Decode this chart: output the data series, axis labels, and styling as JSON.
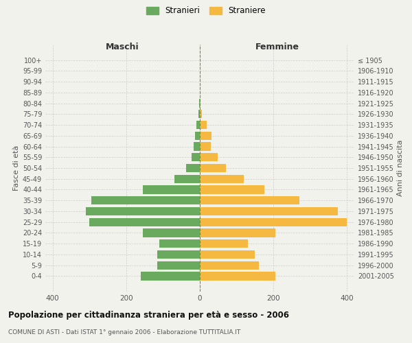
{
  "age_groups": [
    "0-4",
    "5-9",
    "10-14",
    "15-19",
    "20-24",
    "25-29",
    "30-34",
    "35-39",
    "40-44",
    "45-49",
    "50-54",
    "55-59",
    "60-64",
    "65-69",
    "70-74",
    "75-79",
    "80-84",
    "85-89",
    "90-94",
    "95-99",
    "100+"
  ],
  "birth_years": [
    "2001-2005",
    "1996-2000",
    "1991-1995",
    "1986-1990",
    "1981-1985",
    "1976-1980",
    "1971-1975",
    "1966-1970",
    "1961-1965",
    "1956-1960",
    "1951-1955",
    "1946-1950",
    "1941-1945",
    "1936-1940",
    "1931-1935",
    "1926-1930",
    "1921-1925",
    "1916-1920",
    "1911-1915",
    "1906-1910",
    "≤ 1905"
  ],
  "maschi": [
    160,
    115,
    115,
    110,
    155,
    300,
    310,
    295,
    155,
    70,
    38,
    22,
    16,
    14,
    10,
    4,
    1,
    0,
    0,
    0,
    0
  ],
  "femmine": [
    205,
    160,
    150,
    130,
    205,
    400,
    375,
    270,
    175,
    120,
    70,
    48,
    30,
    32,
    18,
    5,
    2,
    0,
    0,
    0,
    0
  ],
  "maschi_color": "#6aaa5e",
  "femmine_color": "#f5b942",
  "background_color": "#f2f2ed",
  "title": "Popolazione per cittadinanza straniera per età e sesso - 2006",
  "subtitle": "COMUNE DI ASTI - Dati ISTAT 1° gennaio 2006 - Elaborazione TUTTITALIA.IT",
  "ylabel_left": "Fasce di età",
  "ylabel_right": "Anni di nascita",
  "xlabel_left": "Maschi",
  "xlabel_right": "Femmine",
  "legend_stranieri": "Stranieri",
  "legend_straniere": "Straniere",
  "xlim": 420,
  "grid_color": "#cccccc"
}
